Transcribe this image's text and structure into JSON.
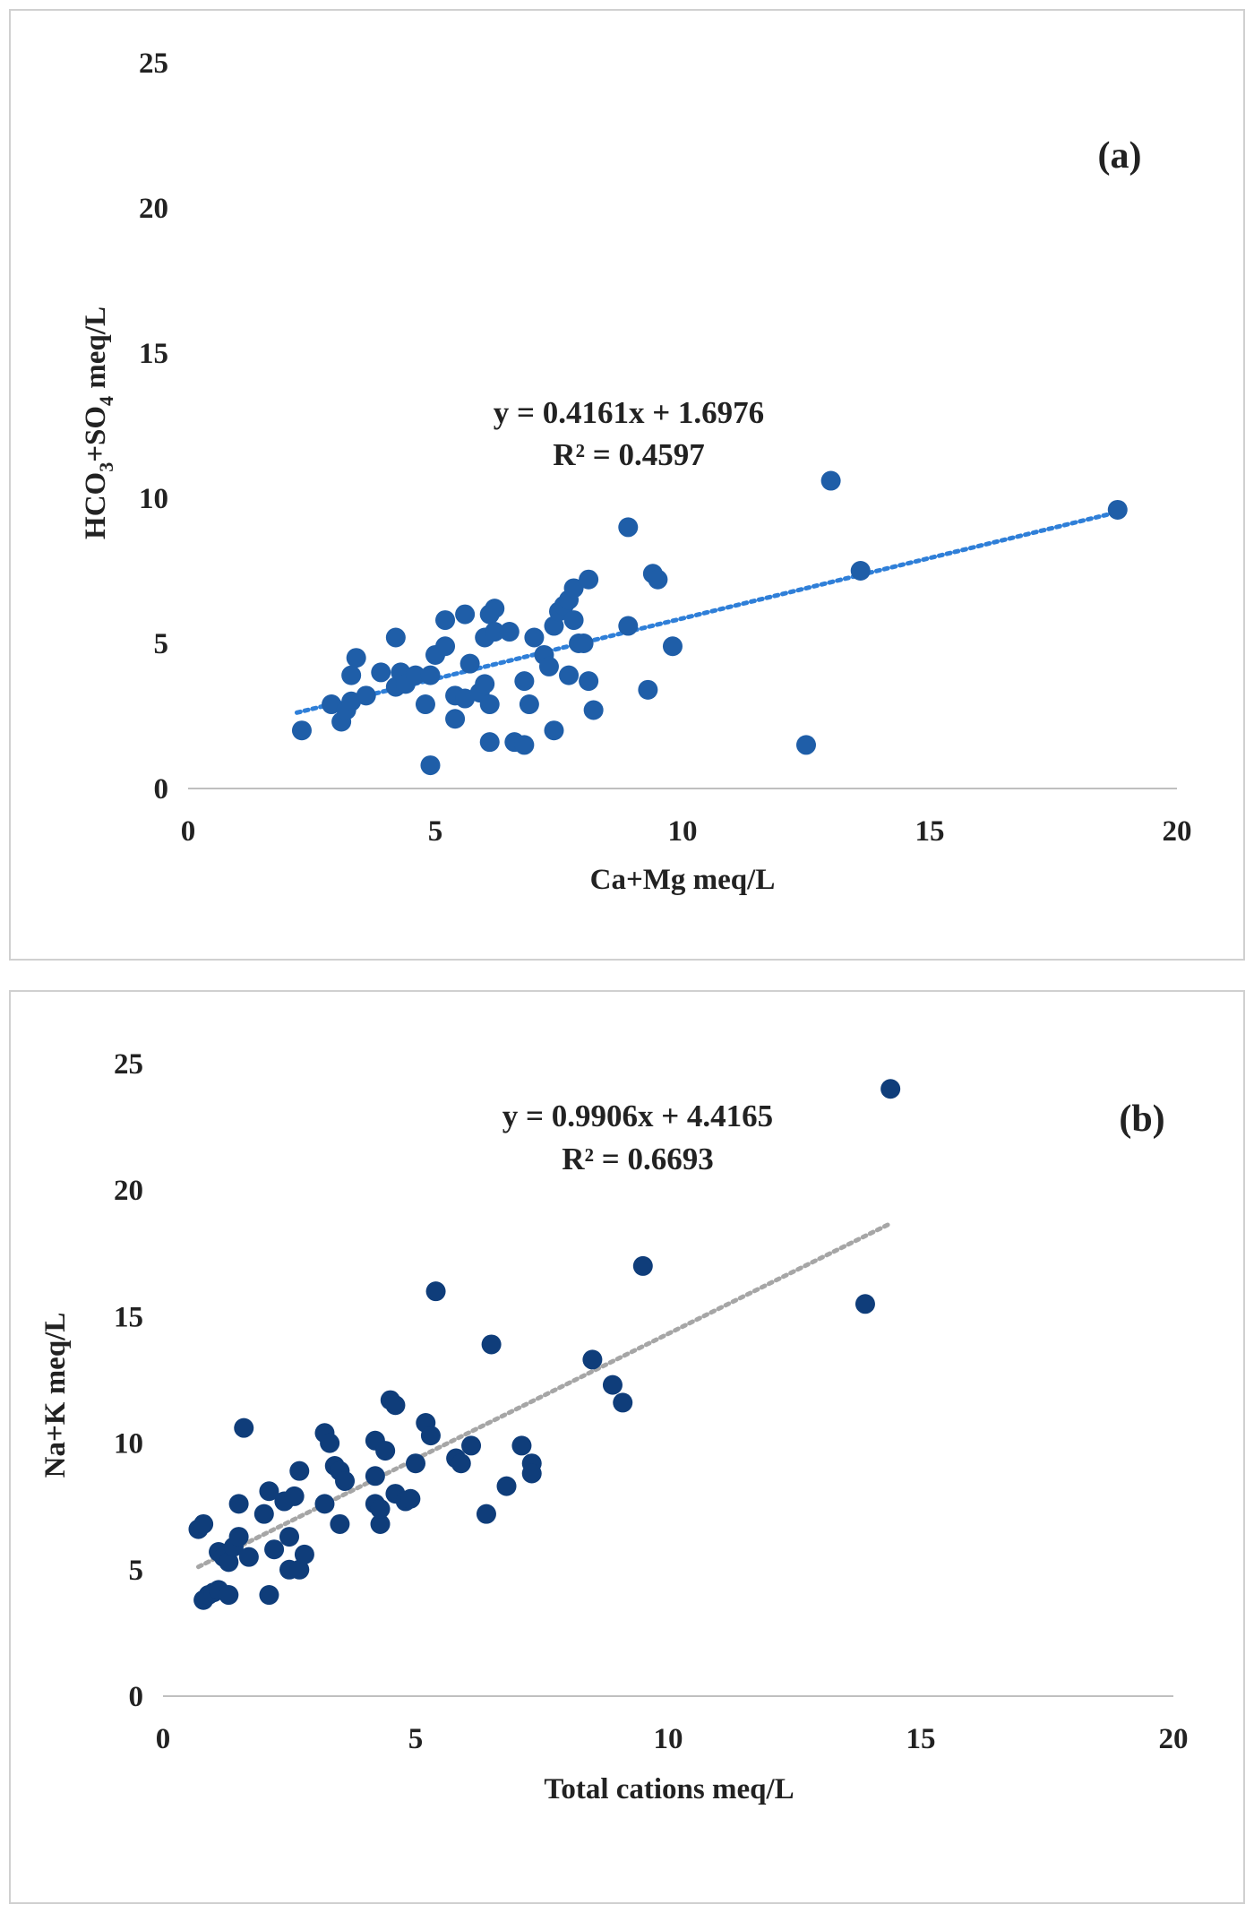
{
  "chart_data": [
    {
      "type": "scatter",
      "panel_label": "(a)",
      "xlabel": "Ca+Mg meq/L",
      "ylabel_parts": [
        "HCO",
        "3",
        "+SO",
        "4",
        " meq/L"
      ],
      "xlim": [
        0,
        20
      ],
      "ylim": [
        0,
        25
      ],
      "xticks": [
        0,
        5,
        10,
        15,
        20
      ],
      "yticks": [
        0,
        5,
        10,
        15,
        20,
        25
      ],
      "equation": "y = 0.4161x + 1.6976",
      "r_squared": "R² = 0.4597",
      "trendline": {
        "slope": 0.4161,
        "intercept": 1.6976,
        "x_range": [
          2.2,
          18.8
        ],
        "color": "#2f7fd8"
      },
      "marker_color": "#1f5ea8",
      "legend": "none",
      "grid": false,
      "points": [
        [
          2.3,
          2.0
        ],
        [
          2.9,
          2.9
        ],
        [
          3.1,
          2.3
        ],
        [
          3.2,
          2.7
        ],
        [
          3.3,
          3.0
        ],
        [
          3.3,
          3.9
        ],
        [
          3.4,
          4.5
        ],
        [
          3.6,
          3.2
        ],
        [
          3.9,
          4.0
        ],
        [
          4.2,
          5.2
        ],
        [
          4.2,
          3.5
        ],
        [
          4.3,
          4.0
        ],
        [
          4.4,
          3.6
        ],
        [
          4.6,
          3.9
        ],
        [
          4.8,
          2.9
        ],
        [
          4.9,
          0.8
        ],
        [
          4.9,
          3.9
        ],
        [
          5.0,
          4.6
        ],
        [
          5.2,
          4.9
        ],
        [
          5.2,
          5.8
        ],
        [
          5.4,
          3.2
        ],
        [
          5.4,
          2.4
        ],
        [
          5.6,
          6.0
        ],
        [
          5.6,
          3.1
        ],
        [
          5.7,
          4.3
        ],
        [
          5.9,
          3.3
        ],
        [
          6.0,
          5.2
        ],
        [
          6.0,
          3.6
        ],
        [
          6.1,
          6.0
        ],
        [
          6.1,
          2.9
        ],
        [
          6.2,
          6.2
        ],
        [
          6.2,
          5.4
        ],
        [
          6.1,
          1.6
        ],
        [
          6.5,
          5.4
        ],
        [
          6.6,
          1.6
        ],
        [
          6.8,
          1.5
        ],
        [
          6.8,
          3.7
        ],
        [
          6.9,
          2.9
        ],
        [
          7.0,
          5.2
        ],
        [
          7.2,
          4.6
        ],
        [
          7.3,
          4.2
        ],
        [
          7.4,
          5.6
        ],
        [
          7.4,
          2.0
        ],
        [
          7.5,
          6.1
        ],
        [
          7.6,
          6.3
        ],
        [
          7.7,
          3.9
        ],
        [
          7.7,
          6.5
        ],
        [
          7.8,
          6.9
        ],
        [
          7.8,
          5.8
        ],
        [
          7.9,
          5.0
        ],
        [
          8.0,
          5.0
        ],
        [
          8.1,
          7.2
        ],
        [
          8.1,
          3.7
        ],
        [
          8.2,
          2.7
        ],
        [
          8.9,
          9.0
        ],
        [
          8.9,
          5.6
        ],
        [
          9.3,
          3.4
        ],
        [
          9.4,
          7.4
        ],
        [
          9.5,
          7.2
        ],
        [
          9.8,
          4.9
        ],
        [
          12.5,
          1.5
        ],
        [
          13.0,
          10.6
        ],
        [
          13.6,
          7.5
        ],
        [
          18.8,
          9.6
        ]
      ]
    },
    {
      "type": "scatter",
      "panel_label": "(b)",
      "xlabel": "Total cations meq/L",
      "ylabel": "Na+K meq/L",
      "xlim": [
        0,
        20
      ],
      "ylim": [
        0,
        25
      ],
      "xticks": [
        0,
        5,
        10,
        15,
        20
      ],
      "yticks": [
        0,
        5,
        10,
        15,
        20,
        25
      ],
      "equation": "y = 0.9906x + 4.4165",
      "r_squared": "R² = 0.6693",
      "trendline": {
        "slope": 0.9906,
        "intercept": 4.4165,
        "x_range": [
          0.7,
          14.4
        ],
        "color": "#a6a6a6"
      },
      "marker_color": "#0f3d7a",
      "legend": "none",
      "grid": false,
      "points": [
        [
          0.7,
          6.6
        ],
        [
          0.8,
          6.8
        ],
        [
          0.8,
          3.8
        ],
        [
          0.9,
          4.0
        ],
        [
          1.0,
          4.1
        ],
        [
          1.1,
          4.2
        ],
        [
          1.1,
          5.7
        ],
        [
          1.2,
          5.5
        ],
        [
          1.3,
          4.0
        ],
        [
          1.3,
          5.3
        ],
        [
          1.4,
          5.9
        ],
        [
          1.5,
          6.3
        ],
        [
          1.5,
          7.6
        ],
        [
          1.6,
          10.6
        ],
        [
          1.7,
          5.5
        ],
        [
          2.0,
          7.2
        ],
        [
          2.1,
          8.1
        ],
        [
          2.1,
          4.0
        ],
        [
          2.2,
          5.8
        ],
        [
          2.4,
          7.7
        ],
        [
          2.5,
          6.3
        ],
        [
          2.5,
          5.0
        ],
        [
          2.6,
          7.9
        ],
        [
          2.7,
          5.0
        ],
        [
          2.7,
          8.9
        ],
        [
          2.8,
          5.6
        ],
        [
          3.2,
          7.6
        ],
        [
          3.2,
          10.4
        ],
        [
          3.3,
          10.0
        ],
        [
          3.4,
          9.1
        ],
        [
          3.5,
          8.9
        ],
        [
          3.5,
          6.8
        ],
        [
          3.6,
          8.5
        ],
        [
          4.2,
          8.7
        ],
        [
          4.2,
          10.1
        ],
        [
          4.2,
          7.6
        ],
        [
          4.3,
          6.8
        ],
        [
          4.3,
          7.4
        ],
        [
          4.4,
          9.7
        ],
        [
          4.5,
          11.7
        ],
        [
          4.6,
          11.5
        ],
        [
          4.6,
          8.0
        ],
        [
          4.8,
          7.7
        ],
        [
          4.9,
          7.8
        ],
        [
          5.0,
          9.2
        ],
        [
          5.2,
          10.8
        ],
        [
          5.3,
          10.3
        ],
        [
          5.4,
          16.0
        ],
        [
          5.8,
          9.4
        ],
        [
          5.9,
          9.2
        ],
        [
          6.1,
          9.9
        ],
        [
          6.4,
          7.2
        ],
        [
          6.5,
          13.9
        ],
        [
          6.8,
          8.3
        ],
        [
          7.1,
          9.9
        ],
        [
          7.3,
          9.2
        ],
        [
          7.3,
          8.8
        ],
        [
          8.5,
          13.3
        ],
        [
          8.9,
          12.3
        ],
        [
          9.1,
          11.6
        ],
        [
          9.5,
          17.0
        ],
        [
          13.9,
          15.5
        ],
        [
          14.4,
          24.0
        ]
      ]
    }
  ]
}
